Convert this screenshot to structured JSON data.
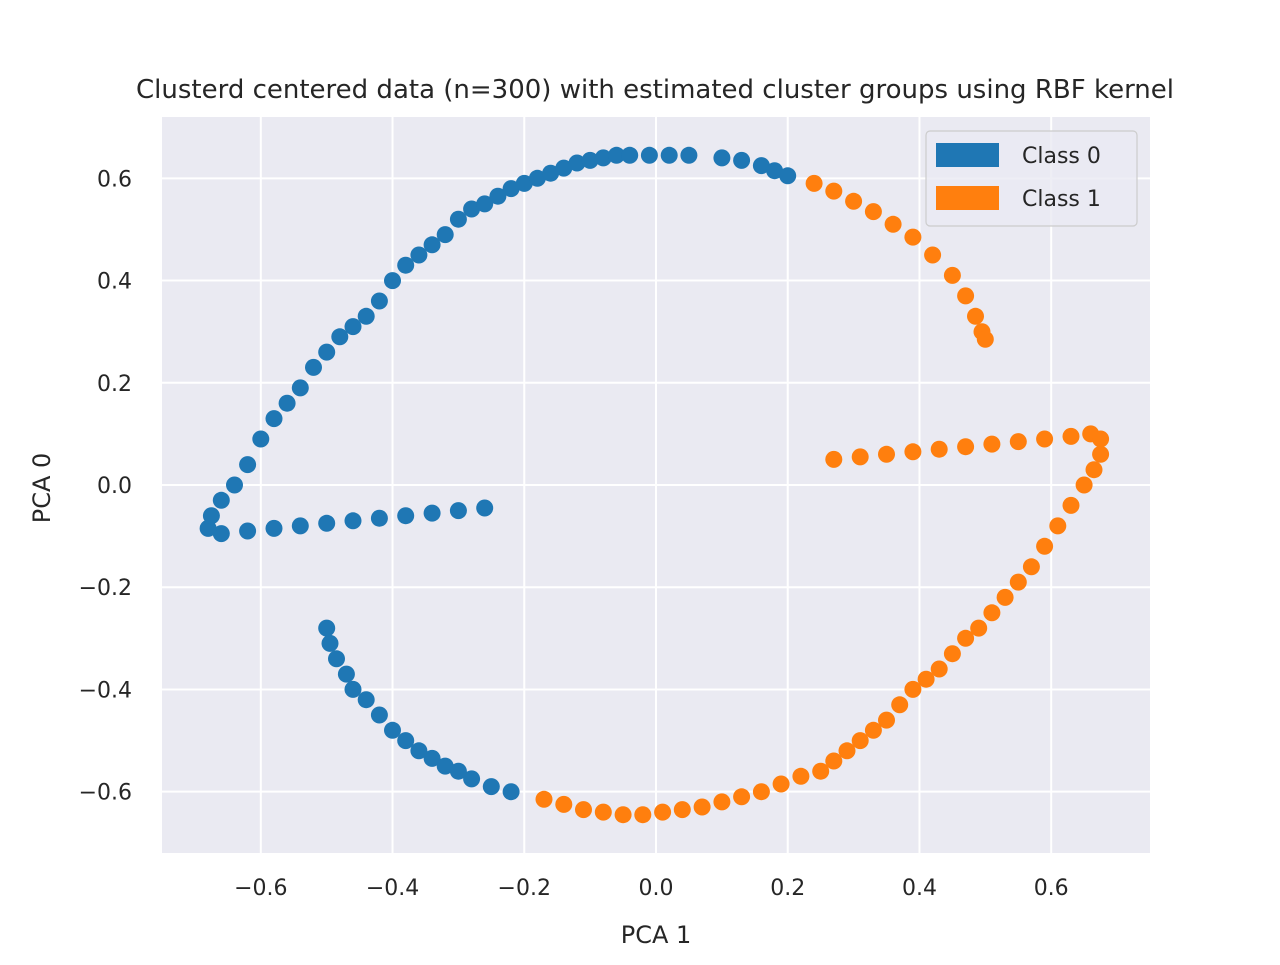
{
  "chart_data": {
    "type": "scatter",
    "title": "Clusterd centered data (n=300) with estimated cluster groups using RBF kernel",
    "xlabel": "PCA 1",
    "ylabel": "PCA 0",
    "xlim": [
      -0.75,
      0.75
    ],
    "ylim": [
      -0.72,
      0.72
    ],
    "x_ticks": [
      -0.6,
      -0.4,
      -0.2,
      0.0,
      0.2,
      0.4,
      0.6
    ],
    "x_tick_labels": [
      "−0.6",
      "−0.4",
      "−0.2",
      "0.0",
      "0.2",
      "0.4",
      "0.6"
    ],
    "y_ticks": [
      -0.6,
      -0.4,
      -0.2,
      0.0,
      0.2,
      0.4,
      0.6
    ],
    "y_tick_labels": [
      "−0.6",
      "−0.4",
      "−0.2",
      "0.0",
      "0.2",
      "0.4",
      "0.6"
    ],
    "grid": true,
    "legend_position": "top-right",
    "colors": {
      "background": "#eaeaf2",
      "grid": "#ffffff",
      "class0": "#1f77b4",
      "class1": "#ff7f0e"
    },
    "series": [
      {
        "name": "Class 0",
        "color": "#1f77b4",
        "points": [
          [
            -0.26,
            -0.045
          ],
          [
            -0.3,
            -0.05
          ],
          [
            -0.34,
            -0.055
          ],
          [
            -0.38,
            -0.06
          ],
          [
            -0.42,
            -0.065
          ],
          [
            -0.46,
            -0.07
          ],
          [
            -0.5,
            -0.075
          ],
          [
            -0.54,
            -0.08
          ],
          [
            -0.58,
            -0.085
          ],
          [
            -0.62,
            -0.09
          ],
          [
            -0.66,
            -0.095
          ],
          [
            -0.68,
            -0.085
          ],
          [
            -0.675,
            -0.06
          ],
          [
            -0.66,
            -0.03
          ],
          [
            -0.64,
            0.0
          ],
          [
            -0.62,
            0.04
          ],
          [
            -0.6,
            0.09
          ],
          [
            -0.58,
            0.13
          ],
          [
            -0.56,
            0.16
          ],
          [
            -0.54,
            0.19
          ],
          [
            -0.52,
            0.23
          ],
          [
            -0.5,
            0.26
          ],
          [
            -0.48,
            0.29
          ],
          [
            -0.46,
            0.31
          ],
          [
            -0.44,
            0.33
          ],
          [
            -0.42,
            0.36
          ],
          [
            -0.4,
            0.4
          ],
          [
            -0.38,
            0.43
          ],
          [
            -0.36,
            0.45
          ],
          [
            -0.34,
            0.47
          ],
          [
            -0.32,
            0.49
          ],
          [
            -0.3,
            0.52
          ],
          [
            -0.28,
            0.54
          ],
          [
            -0.26,
            0.55
          ],
          [
            -0.24,
            0.565
          ],
          [
            -0.22,
            0.58
          ],
          [
            -0.2,
            0.59
          ],
          [
            -0.18,
            0.6
          ],
          [
            -0.16,
            0.61
          ],
          [
            -0.14,
            0.62
          ],
          [
            -0.12,
            0.63
          ],
          [
            -0.1,
            0.635
          ],
          [
            -0.08,
            0.64
          ],
          [
            -0.06,
            0.645
          ],
          [
            -0.04,
            0.645
          ],
          [
            -0.01,
            0.645
          ],
          [
            0.02,
            0.645
          ],
          [
            0.05,
            0.645
          ],
          [
            0.1,
            0.64
          ],
          [
            0.13,
            0.635
          ],
          [
            0.16,
            0.625
          ],
          [
            0.18,
            0.615
          ],
          [
            0.2,
            0.605
          ],
          [
            -0.5,
            -0.28
          ],
          [
            -0.495,
            -0.31
          ],
          [
            -0.485,
            -0.34
          ],
          [
            -0.47,
            -0.37
          ],
          [
            -0.46,
            -0.4
          ],
          [
            -0.44,
            -0.42
          ],
          [
            -0.42,
            -0.45
          ],
          [
            -0.4,
            -0.48
          ],
          [
            -0.38,
            -0.5
          ],
          [
            -0.36,
            -0.52
          ],
          [
            -0.34,
            -0.535
          ],
          [
            -0.32,
            -0.55
          ],
          [
            -0.3,
            -0.56
          ],
          [
            -0.28,
            -0.575
          ],
          [
            -0.25,
            -0.59
          ],
          [
            -0.22,
            -0.6
          ]
        ]
      },
      {
        "name": "Class 1",
        "color": "#ff7f0e",
        "points": [
          [
            0.24,
            0.59
          ],
          [
            0.27,
            0.575
          ],
          [
            0.3,
            0.555
          ],
          [
            0.33,
            0.535
          ],
          [
            0.36,
            0.51
          ],
          [
            0.39,
            0.485
          ],
          [
            0.42,
            0.45
          ],
          [
            0.45,
            0.41
          ],
          [
            0.47,
            0.37
          ],
          [
            0.485,
            0.33
          ],
          [
            0.495,
            0.3
          ],
          [
            0.5,
            0.285
          ],
          [
            0.27,
            0.05
          ],
          [
            0.31,
            0.055
          ],
          [
            0.35,
            0.06
          ],
          [
            0.39,
            0.065
          ],
          [
            0.43,
            0.07
          ],
          [
            0.47,
            0.075
          ],
          [
            0.51,
            0.08
          ],
          [
            0.55,
            0.085
          ],
          [
            0.59,
            0.09
          ],
          [
            0.63,
            0.095
          ],
          [
            0.66,
            0.1
          ],
          [
            0.675,
            0.09
          ],
          [
            0.675,
            0.06
          ],
          [
            0.665,
            0.03
          ],
          [
            0.65,
            0.0
          ],
          [
            0.63,
            -0.04
          ],
          [
            0.61,
            -0.08
          ],
          [
            0.59,
            -0.12
          ],
          [
            0.57,
            -0.16
          ],
          [
            0.55,
            -0.19
          ],
          [
            0.53,
            -0.22
          ],
          [
            0.51,
            -0.25
          ],
          [
            0.49,
            -0.28
          ],
          [
            0.47,
            -0.3
          ],
          [
            0.45,
            -0.33
          ],
          [
            0.43,
            -0.36
          ],
          [
            0.41,
            -0.38
          ],
          [
            0.39,
            -0.4
          ],
          [
            0.37,
            -0.43
          ],
          [
            0.35,
            -0.46
          ],
          [
            0.33,
            -0.48
          ],
          [
            0.31,
            -0.5
          ],
          [
            0.29,
            -0.52
          ],
          [
            0.27,
            -0.54
          ],
          [
            0.25,
            -0.56
          ],
          [
            0.22,
            -0.57
          ],
          [
            0.19,
            -0.585
          ],
          [
            0.16,
            -0.6
          ],
          [
            0.13,
            -0.61
          ],
          [
            0.1,
            -0.62
          ],
          [
            0.07,
            -0.63
          ],
          [
            0.04,
            -0.635
          ],
          [
            0.01,
            -0.64
          ],
          [
            -0.02,
            -0.645
          ],
          [
            -0.05,
            -0.645
          ],
          [
            -0.08,
            -0.64
          ],
          [
            -0.11,
            -0.635
          ],
          [
            -0.14,
            -0.625
          ],
          [
            -0.17,
            -0.615
          ]
        ]
      }
    ]
  }
}
